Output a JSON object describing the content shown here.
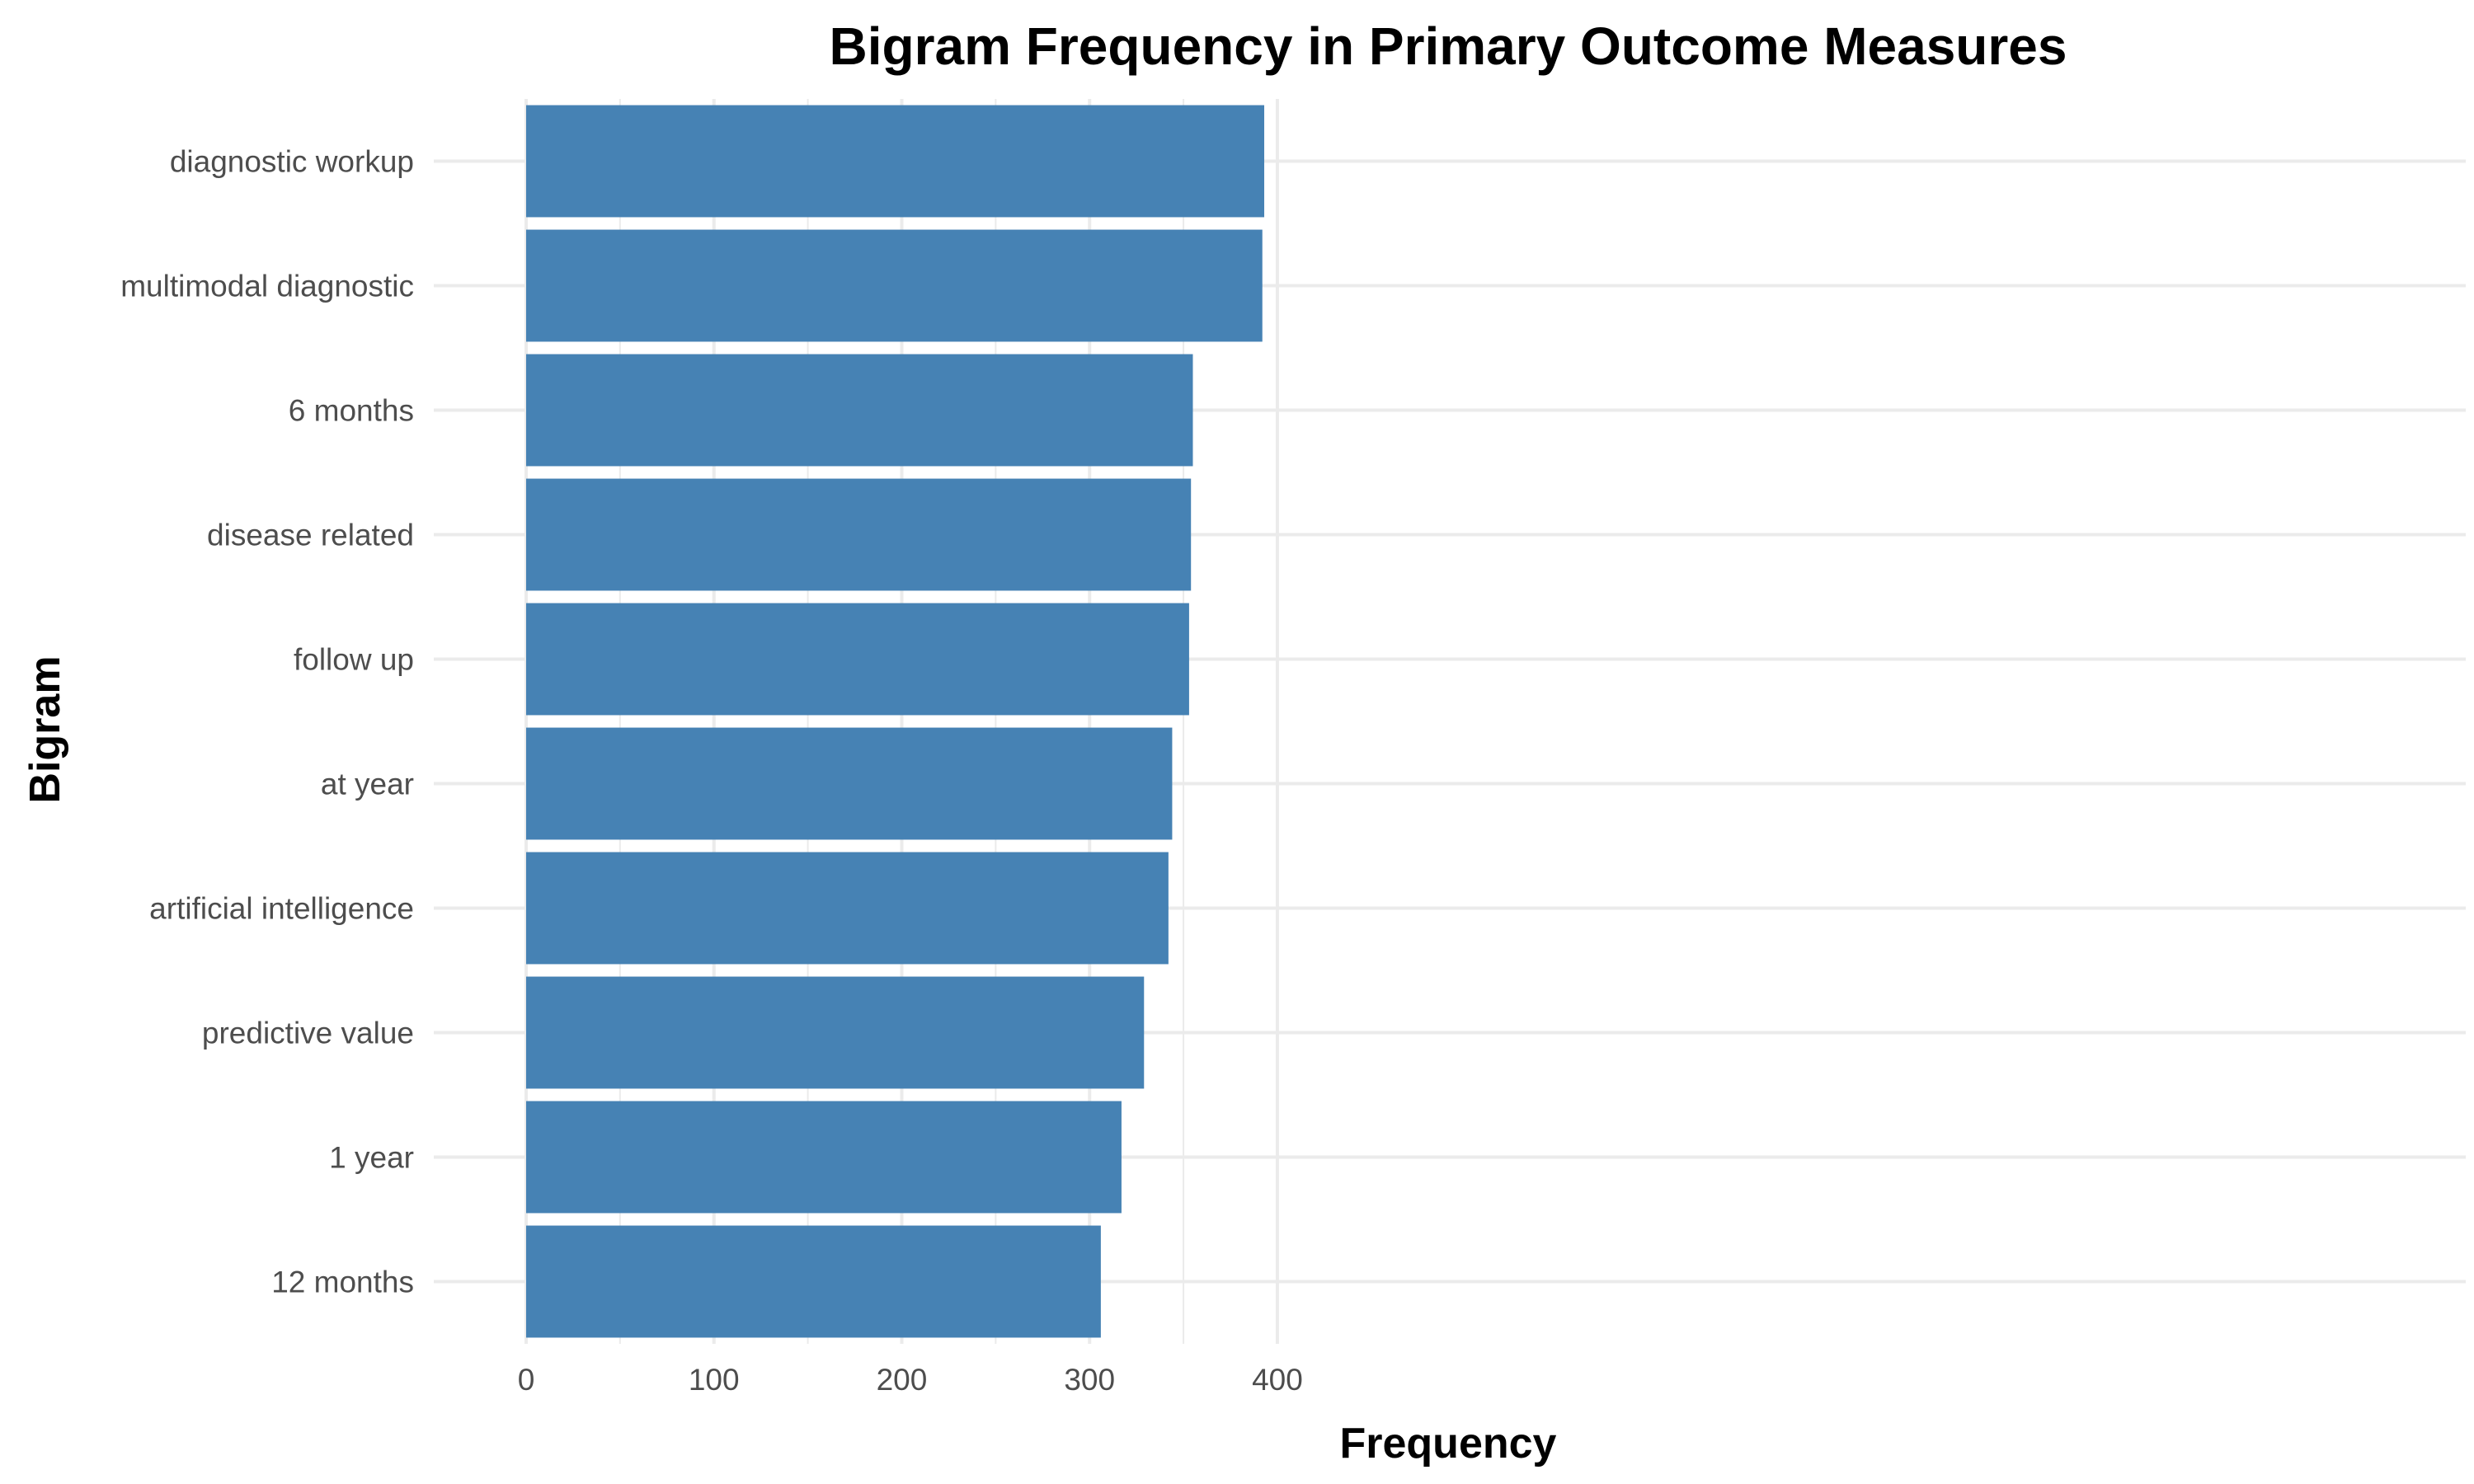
{
  "chart_data": {
    "type": "bar",
    "orientation": "horizontal",
    "title": "Bigram Frequency in Primary Outcome Measures",
    "xlabel": "Frequency",
    "ylabel": "Bigram",
    "categories": [
      "diagnostic workup",
      "multimodal diagnostic",
      "6 months",
      "disease related",
      "follow up",
      "at year",
      "artificial intelligence",
      "predictive value",
      "1 year",
      "12 months"
    ],
    "values": [
      393,
      392,
      355,
      354,
      353,
      344,
      342,
      329,
      317,
      306
    ],
    "xlim": [
      0,
      410
    ],
    "xticks": [
      "0",
      "100",
      "200",
      "300",
      "400"
    ],
    "grid": true,
    "legend": "none",
    "bar_color": "#4682B4",
    "grid_color": "#ebebeb"
  }
}
